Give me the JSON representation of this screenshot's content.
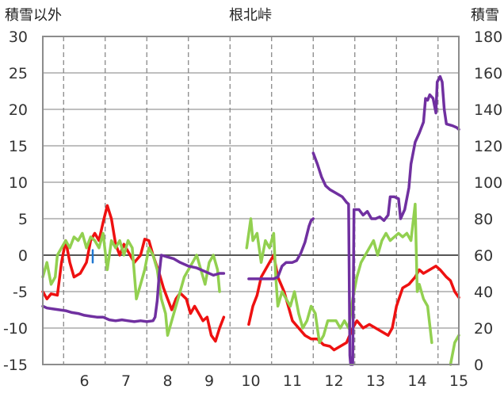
{
  "chart_data": {
    "type": "line",
    "title": "根北峠",
    "ylabel_left": "積雪以外",
    "ylabel_right": "積雪",
    "xlim": [
      5.5,
      15.5
    ],
    "ylim_left": [
      -15,
      30
    ],
    "ylim_right": [
      0,
      180
    ],
    "x_ticks": [
      "6",
      "7",
      "8",
      "9",
      "10",
      "11",
      "12",
      "13",
      "14",
      "15"
    ],
    "y_left_ticks": [
      "30",
      "25",
      "20",
      "15",
      "10",
      "5",
      "0",
      "-5",
      "-10",
      "-15"
    ],
    "y_right_ticks": [
      "180",
      "160",
      "140",
      "120",
      "100",
      "80",
      "60",
      "40",
      "20",
      "0"
    ],
    "grid": true,
    "colors": {
      "red_series": "#ee1111",
      "green_series": "#92d050",
      "purple_series": "#7030a0",
      "blue_series": "#1f77d0",
      "grid": "#7f7f7f",
      "zero_line": "#555555"
    },
    "series": [
      {
        "axis": "left",
        "color": "red_series",
        "segments": [
          [
            [
              5.5,
              -5
            ],
            [
              5.6,
              -6
            ],
            [
              5.7,
              -5.3
            ],
            [
              5.85,
              -5.5
            ],
            [
              5.95,
              -1
            ],
            [
              6.05,
              2
            ],
            [
              6.15,
              -1
            ],
            [
              6.25,
              -3
            ],
            [
              6.4,
              -2.5
            ],
            [
              6.55,
              -1
            ],
            [
              6.65,
              2
            ],
            [
              6.75,
              3
            ],
            [
              6.85,
              2
            ],
            [
              6.95,
              4.5
            ],
            [
              7.05,
              6.8
            ],
            [
              7.15,
              5
            ],
            [
              7.25,
              1.5
            ],
            [
              7.35,
              0
            ],
            [
              7.45,
              1.5
            ],
            [
              7.55,
              0.5
            ],
            [
              7.7,
              -1
            ],
            [
              7.85,
              0
            ],
            [
              7.95,
              2.2
            ],
            [
              8.05,
              2
            ],
            [
              8.15,
              0
            ],
            [
              8.3,
              -2.5
            ],
            [
              8.4,
              -4.5
            ],
            [
              8.5,
              -6
            ],
            [
              8.6,
              -7.5
            ],
            [
              8.7,
              -6
            ],
            [
              8.8,
              -5.2
            ],
            [
              8.95,
              -6
            ],
            [
              9.05,
              -8
            ],
            [
              9.15,
              -7
            ],
            [
              9.25,
              -8
            ],
            [
              9.35,
              -9
            ],
            [
              9.45,
              -8.5
            ],
            [
              9.55,
              -11
            ],
            [
              9.65,
              -11.8
            ],
            [
              9.75,
              -10
            ],
            [
              9.85,
              -8.5
            ]
          ],
          [
            [
              10.45,
              -9.5
            ],
            [
              10.55,
              -7
            ],
            [
              10.65,
              -5.5
            ],
            [
              10.75,
              -3
            ],
            [
              10.85,
              -2
            ],
            [
              10.95,
              -1
            ],
            [
              11.05,
              0
            ],
            [
              11.15,
              -3
            ],
            [
              11.3,
              -5
            ],
            [
              11.4,
              -7
            ],
            [
              11.5,
              -9
            ],
            [
              11.65,
              -10
            ],
            [
              11.8,
              -11
            ],
            [
              11.95,
              -11.5
            ],
            [
              12.1,
              -11.5
            ],
            [
              12.25,
              -12.3
            ],
            [
              12.4,
              -12.5
            ],
            [
              12.5,
              -13
            ],
            [
              12.65,
              -12.5
            ],
            [
              12.8,
              -12
            ],
            [
              12.95,
              -10
            ],
            [
              13.05,
              -9
            ],
            [
              13.2,
              -10
            ],
            [
              13.35,
              -9.5
            ],
            [
              13.5,
              -10
            ],
            [
              13.65,
              -10.5
            ],
            [
              13.8,
              -11
            ],
            [
              13.9,
              -10
            ],
            [
              14.0,
              -7
            ],
            [
              14.15,
              -4.5
            ],
            [
              14.3,
              -4
            ],
            [
              14.45,
              -3
            ],
            [
              14.55,
              -2
            ],
            [
              14.65,
              -2.5
            ],
            [
              14.8,
              -2
            ],
            [
              14.95,
              -1.5
            ],
            [
              15.05,
              -2
            ],
            [
              15.2,
              -3
            ],
            [
              15.3,
              -3.5
            ],
            [
              15.4,
              -5
            ],
            [
              15.5,
              -5.8
            ]
          ]
        ]
      },
      {
        "axis": "left",
        "color": "green_series",
        "segments": [
          [
            [
              5.5,
              -3
            ],
            [
              5.6,
              -1
            ],
            [
              5.7,
              -4
            ],
            [
              5.8,
              -3
            ],
            [
              5.85,
              0
            ],
            [
              5.95,
              1
            ],
            [
              6.05,
              2
            ],
            [
              6.15,
              1
            ],
            [
              6.25,
              2.5
            ],
            [
              6.35,
              2
            ],
            [
              6.45,
              3
            ],
            [
              6.55,
              1
            ],
            [
              6.65,
              2.5
            ],
            [
              6.75,
              2
            ],
            [
              6.85,
              1
            ],
            [
              6.95,
              3
            ],
            [
              7.05,
              -2
            ],
            [
              7.15,
              2
            ],
            [
              7.25,
              1
            ],
            [
              7.35,
              2
            ],
            [
              7.45,
              0
            ],
            [
              7.55,
              2
            ],
            [
              7.65,
              1
            ],
            [
              7.75,
              -6
            ],
            [
              7.85,
              -4
            ],
            [
              7.95,
              -2
            ],
            [
              8.05,
              1
            ],
            [
              8.15,
              0
            ],
            [
              8.25,
              -2
            ],
            [
              8.35,
              -6
            ],
            [
              8.45,
              -8
            ],
            [
              8.5,
              -11
            ],
            [
              8.6,
              -9
            ],
            [
              8.7,
              -7
            ],
            [
              8.8,
              -5
            ],
            [
              8.9,
              -3
            ],
            [
              9.0,
              -2
            ],
            [
              9.1,
              -1
            ],
            [
              9.2,
              0
            ],
            [
              9.3,
              -2
            ],
            [
              9.4,
              -4
            ],
            [
              9.5,
              -1
            ],
            [
              9.6,
              0
            ],
            [
              9.7,
              -2
            ],
            [
              9.75,
              -5
            ]
          ],
          [
            [
              10.4,
              1
            ],
            [
              10.5,
              5
            ],
            [
              10.55,
              2
            ],
            [
              10.65,
              3
            ],
            [
              10.75,
              -1
            ],
            [
              10.85,
              2
            ],
            [
              10.95,
              1
            ],
            [
              11.05,
              3
            ],
            [
              11.1,
              -3
            ],
            [
              11.15,
              -7
            ],
            [
              11.25,
              -5
            ],
            [
              11.35,
              -6
            ],
            [
              11.45,
              -7
            ],
            [
              11.55,
              -5
            ],
            [
              11.65,
              -8
            ],
            [
              11.75,
              -10
            ],
            [
              11.85,
              -9
            ],
            [
              11.95,
              -7
            ],
            [
              12.05,
              -8
            ],
            [
              12.15,
              -12
            ],
            [
              12.25,
              -11
            ],
            [
              12.35,
              -9
            ],
            [
              12.45,
              -9
            ],
            [
              12.55,
              -9
            ],
            [
              12.65,
              -10
            ],
            [
              12.75,
              -9
            ],
            [
              12.85,
              -10
            ],
            [
              12.95,
              -6
            ],
            [
              13.05,
              -3
            ],
            [
              13.15,
              -1
            ],
            [
              13.25,
              0
            ],
            [
              13.35,
              1
            ],
            [
              13.45,
              2
            ],
            [
              13.55,
              0
            ],
            [
              13.65,
              2
            ],
            [
              13.75,
              3
            ],
            [
              13.85,
              2
            ],
            [
              13.95,
              2.5
            ],
            [
              14.05,
              3
            ],
            [
              14.15,
              2.5
            ],
            [
              14.25,
              3
            ],
            [
              14.35,
              2
            ],
            [
              14.45,
              7
            ],
            [
              14.5,
              -5
            ],
            [
              14.55,
              -4
            ],
            [
              14.65,
              -6
            ],
            [
              14.75,
              -7
            ],
            [
              14.85,
              -12
            ]
          ],
          [
            [
              15.3,
              -15
            ],
            [
              15.4,
              -12
            ],
            [
              15.5,
              -11
            ]
          ]
        ]
      },
      {
        "axis": "right",
        "color": "purple_series",
        "segments": [
          [
            [
              5.5,
              32
            ],
            [
              5.6,
              31
            ],
            [
              5.75,
              30.5
            ],
            [
              5.9,
              30
            ],
            [
              6.05,
              29.5
            ],
            [
              6.2,
              28.5
            ],
            [
              6.35,
              28
            ],
            [
              6.5,
              27
            ],
            [
              6.65,
              26.5
            ],
            [
              6.8,
              26
            ],
            [
              6.95,
              26
            ],
            [
              7.1,
              24.5
            ],
            [
              7.25,
              24
            ],
            [
              7.4,
              24.5
            ],
            [
              7.55,
              24
            ],
            [
              7.7,
              23.5
            ],
            [
              7.85,
              24
            ],
            [
              8.0,
              23.5
            ],
            [
              8.15,
              24
            ],
            [
              8.2,
              26
            ],
            [
              8.25,
              35
            ],
            [
              8.3,
              50
            ],
            [
              8.35,
              60
            ],
            [
              8.5,
              59
            ],
            [
              8.65,
              58
            ],
            [
              8.8,
              56
            ],
            [
              9.0,
              54
            ],
            [
              9.2,
              53
            ],
            [
              9.4,
              51
            ],
            [
              9.6,
              49
            ],
            [
              9.75,
              50
            ],
            [
              9.85,
              50
            ]
          ],
          [
            [
              10.45,
              47
            ],
            [
              10.6,
              47
            ],
            [
              10.75,
              47
            ],
            [
              10.9,
              47
            ],
            [
              11.05,
              47
            ],
            [
              11.15,
              48
            ],
            [
              11.25,
              54
            ],
            [
              11.35,
              56
            ],
            [
              11.5,
              56
            ],
            [
              11.6,
              57
            ],
            [
              11.7,
              61
            ],
            [
              11.8,
              67
            ],
            [
              11.9,
              76
            ],
            [
              11.95,
              79
            ],
            [
              12.0,
              80
            ]
          ],
          [
            [
              12.0,
              116
            ],
            [
              12.1,
              110
            ],
            [
              12.2,
              103
            ],
            [
              12.3,
              98
            ],
            [
              12.4,
              96
            ],
            [
              12.55,
              94
            ],
            [
              12.7,
              92
            ],
            [
              12.8,
              89
            ],
            [
              12.85,
              88
            ],
            [
              12.88,
              5
            ],
            [
              12.9,
              0
            ],
            [
              12.95,
              0
            ],
            [
              12.98,
              85
            ],
            [
              13.1,
              85
            ],
            [
              13.2,
              82
            ],
            [
              13.3,
              84
            ],
            [
              13.4,
              80
            ],
            [
              13.5,
              80
            ],
            [
              13.6,
              81
            ],
            [
              13.7,
              79
            ],
            [
              13.8,
              82
            ],
            [
              13.85,
              92
            ],
            [
              13.95,
              92
            ],
            [
              14.05,
              91
            ],
            [
              14.1,
              80
            ],
            [
              14.2,
              85
            ],
            [
              14.3,
              97
            ],
            [
              14.35,
              110
            ],
            [
              14.45,
              122
            ],
            [
              14.55,
              127
            ],
            [
              14.65,
              133
            ],
            [
              14.7,
              146
            ],
            [
              14.75,
              145
            ],
            [
              14.8,
              148
            ],
            [
              14.88,
              146
            ],
            [
              14.95,
              138
            ],
            [
              14.98,
              155
            ],
            [
              15.05,
              158
            ],
            [
              15.1,
              155
            ],
            [
              15.15,
              140
            ],
            [
              15.2,
              132
            ],
            [
              15.35,
              131
            ],
            [
              15.45,
              130
            ],
            [
              15.5,
              129
            ]
          ]
        ]
      },
      {
        "axis": "left",
        "color": "blue_series",
        "segments": [
          [
            [
              6.7,
              0.7
            ],
            [
              6.7,
              -1.0
            ]
          ]
        ]
      }
    ]
  }
}
